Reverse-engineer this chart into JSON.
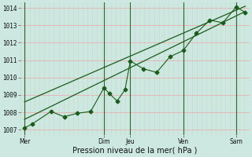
{
  "xlabel": "Pression niveau de la mer( hPa )",
  "bg_color": "#cce8e0",
  "grid_color_h": "#e8b0b0",
  "grid_color_v": "#c8d8c8",
  "vline_color": "#336633",
  "line_color": "#1a5c1a",
  "ylim": [
    1006.7,
    1014.3
  ],
  "yticks": [
    1007,
    1008,
    1009,
    1010,
    1011,
    1012,
    1013,
    1014
  ],
  "day_labels": [
    "Mer",
    "Dim",
    "Jeu",
    "Ven",
    "Sam"
  ],
  "day_positions": [
    0.0,
    3.0,
    4.0,
    6.0,
    8.0
  ],
  "xlim": [
    -0.15,
    8.5
  ],
  "num_v_gridlines": 48,
  "zigzag_x": [
    0.0,
    0.3,
    1.0,
    1.5,
    2.0,
    2.5,
    3.0,
    3.2,
    3.5,
    3.8,
    4.0,
    4.5,
    5.0,
    5.5,
    6.0,
    6.5,
    7.0,
    7.5,
    8.0,
    8.35
  ],
  "zigzag_y": [
    1007.1,
    1007.35,
    1008.05,
    1007.75,
    1007.95,
    1008.05,
    1009.4,
    1009.1,
    1008.65,
    1009.3,
    1010.95,
    1010.5,
    1010.3,
    1011.2,
    1011.55,
    1012.55,
    1013.3,
    1013.15,
    1014.05,
    1013.75
  ],
  "line1_x": [
    0.0,
    8.35
  ],
  "line1_y": [
    1007.6,
    1013.8
  ],
  "line2_x": [
    0.0,
    8.35
  ],
  "line2_y": [
    1008.6,
    1014.1
  ],
  "vline_positions": [
    0.0,
    3.0,
    4.0,
    6.0,
    8.0
  ],
  "marker_size": 2.5,
  "tick_fontsize": 5.5,
  "xlabel_fontsize": 7
}
